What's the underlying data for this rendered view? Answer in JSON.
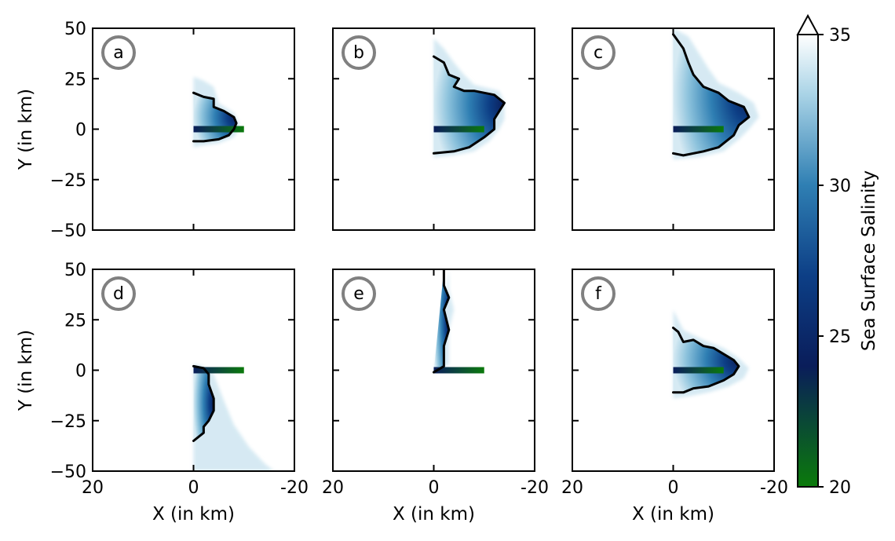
{
  "chart_data": {
    "type": "heatmap",
    "panel_grid": {
      "rows": 2,
      "cols": 3
    },
    "xlim": [
      20,
      -20
    ],
    "ylim": [
      -50,
      50
    ],
    "xticks": [
      20,
      0,
      -20
    ],
    "xtick_labels": [
      "20",
      "0",
      "-20"
    ],
    "yticks": [
      50,
      25,
      0,
      -25,
      -50
    ],
    "ytick_labels": [
      "50",
      "25",
      "0",
      "−25",
      "−50"
    ],
    "xlabel": "X (in km)",
    "ylabel": "Y (in km)",
    "colorbar": {
      "label": "Sea Surface Salinity",
      "min": 20,
      "max": 35,
      "ticks": [
        20,
        25,
        30,
        35
      ],
      "tick_labels": [
        "20",
        "25",
        "30",
        "35"
      ],
      "extend": "max",
      "stops": [
        {
          "value": 20,
          "color": "#0b7a0b"
        },
        {
          "value": 24,
          "color": "#0a1d5a"
        },
        {
          "value": 27,
          "color": "#0d3f86"
        },
        {
          "value": 30,
          "color": "#2f7fb3"
        },
        {
          "value": 33,
          "color": "#a9d3e6"
        },
        {
          "value": 35,
          "color": "#ffffff"
        }
      ]
    },
    "river_channel": {
      "x": [
        0,
        -10
      ],
      "y": 0
    },
    "panels": [
      {
        "label": "a",
        "has_ylabel": true,
        "has_xlabel": false,
        "contour": [
          [
            0,
            18
          ],
          [
            -2,
            16
          ],
          [
            -4,
            15
          ],
          [
            -4,
            11
          ],
          [
            -6,
            9
          ],
          [
            -8,
            6
          ],
          [
            -8.5,
            3
          ],
          [
            -8,
            0
          ],
          [
            -7,
            -3
          ],
          [
            -5,
            -5
          ],
          [
            -2,
            -6
          ],
          [
            0,
            -6
          ]
        ],
        "plume": [
          [
            0,
            26
          ],
          [
            -2,
            24
          ],
          [
            -4,
            21
          ],
          [
            -5,
            13
          ],
          [
            -8,
            8
          ],
          [
            -9,
            3
          ],
          [
            -9,
            0
          ],
          [
            -8,
            -4
          ],
          [
            -5,
            -7
          ],
          [
            -2,
            -8
          ],
          [
            0,
            -9
          ]
        ]
      },
      {
        "label": "b",
        "has_ylabel": false,
        "has_xlabel": false,
        "contour": [
          [
            0,
            36
          ],
          [
            -2,
            33
          ],
          [
            -3,
            27
          ],
          [
            -5,
            25
          ],
          [
            -4,
            21
          ],
          [
            -6,
            19
          ],
          [
            -8,
            19
          ],
          [
            -12,
            17
          ],
          [
            -14,
            13
          ],
          [
            -12,
            5
          ],
          [
            -12,
            0
          ],
          [
            -10,
            -4
          ],
          [
            -7,
            -9
          ],
          [
            -4,
            -11
          ],
          [
            0,
            -12
          ]
        ],
        "plume": [
          [
            0,
            45
          ],
          [
            -2,
            40
          ],
          [
            -4,
            33
          ],
          [
            -6,
            27
          ],
          [
            -8,
            22
          ],
          [
            -13,
            19
          ],
          [
            -14,
            13
          ],
          [
            -14,
            5
          ],
          [
            -13,
            0
          ],
          [
            -11,
            -6
          ],
          [
            -8,
            -11
          ],
          [
            -4,
            -13
          ],
          [
            0,
            -14
          ]
        ]
      },
      {
        "label": "c",
        "has_ylabel": false,
        "has_xlabel": false,
        "contour": [
          [
            0,
            47
          ],
          [
            -2,
            40
          ],
          [
            -3,
            33
          ],
          [
            -4,
            27
          ],
          [
            -6,
            21
          ],
          [
            -9,
            18
          ],
          [
            -11,
            14
          ],
          [
            -14,
            11
          ],
          [
            -15,
            6
          ],
          [
            -13,
            2
          ],
          [
            -12,
            -3
          ],
          [
            -9,
            -9
          ],
          [
            -6,
            -11
          ],
          [
            -2,
            -13
          ],
          [
            0,
            -12
          ]
        ],
        "plume": [
          [
            0,
            50
          ],
          [
            -3,
            46
          ],
          [
            -5,
            38
          ],
          [
            -7,
            30
          ],
          [
            -9,
            23
          ],
          [
            -13,
            18
          ],
          [
            -16,
            13
          ],
          [
            -17,
            6
          ],
          [
            -15,
            0
          ],
          [
            -13,
            -5
          ],
          [
            -10,
            -11
          ],
          [
            -5,
            -14
          ],
          [
            0,
            -15
          ]
        ]
      },
      {
        "label": "d",
        "has_ylabel": true,
        "has_xlabel": true,
        "contour": [
          [
            0,
            2
          ],
          [
            -2,
            1
          ],
          [
            -3,
            -2
          ],
          [
            -3,
            -7
          ],
          [
            -4,
            -14
          ],
          [
            -4,
            -20
          ],
          [
            -3,
            -25
          ],
          [
            -2,
            -28
          ],
          [
            -2,
            -31
          ],
          [
            0,
            -35
          ]
        ],
        "plume": [
          [
            0,
            3
          ],
          [
            -2,
            2
          ],
          [
            -4,
            -2
          ],
          [
            -6,
            -15
          ],
          [
            -8,
            -27
          ],
          [
            -11,
            -38
          ],
          [
            -14,
            -46
          ],
          [
            -16,
            -50
          ],
          [
            0,
            -50
          ]
        ]
      },
      {
        "label": "e",
        "has_ylabel": false,
        "has_xlabel": true,
        "contour": [
          [
            -2,
            50
          ],
          [
            -2,
            42
          ],
          [
            -3,
            36
          ],
          [
            -2,
            30
          ],
          [
            -3,
            20
          ],
          [
            -2,
            12
          ],
          [
            -2,
            6
          ],
          [
            -2,
            2
          ],
          [
            0,
            -1
          ]
        ],
        "plume": [
          [
            -3,
            50
          ],
          [
            -3,
            40
          ],
          [
            -4,
            30
          ],
          [
            -3,
            20
          ],
          [
            -3,
            10
          ],
          [
            -3,
            3
          ],
          [
            -1,
            0
          ],
          [
            0,
            -2
          ]
        ]
      },
      {
        "label": "f",
        "has_ylabel": false,
        "has_xlabel": true,
        "contour": [
          [
            0,
            21
          ],
          [
            -1,
            19
          ],
          [
            -2,
            14
          ],
          [
            -4,
            15
          ],
          [
            -6,
            12
          ],
          [
            -8,
            11
          ],
          [
            -10,
            8
          ],
          [
            -12,
            5
          ],
          [
            -13,
            2
          ],
          [
            -12,
            -2
          ],
          [
            -10,
            -5
          ],
          [
            -7,
            -8
          ],
          [
            -4,
            -9
          ],
          [
            -2,
            -11
          ],
          [
            0,
            -11
          ]
        ],
        "plume": [
          [
            0,
            30
          ],
          [
            -2,
            20
          ],
          [
            -6,
            15
          ],
          [
            -10,
            11
          ],
          [
            -13,
            6
          ],
          [
            -15,
            1
          ],
          [
            -14,
            -4
          ],
          [
            -11,
            -8
          ],
          [
            -7,
            -11
          ],
          [
            -3,
            -13
          ],
          [
            0,
            -14
          ]
        ]
      }
    ]
  }
}
